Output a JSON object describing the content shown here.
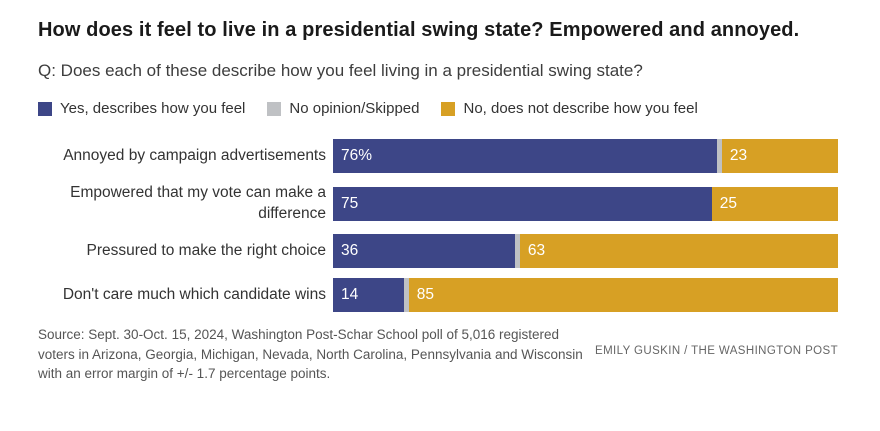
{
  "title": "How does it feel to live in a presidential swing state? Empowered and annoyed.",
  "subtitle": "Q: Does each of these describe how you feel living in a presidential swing state?",
  "chart_data": {
    "type": "bar",
    "orientation": "horizontal",
    "stacked": true,
    "unit": "percent",
    "xlim": [
      0,
      100
    ],
    "grid": false,
    "legend_position": "top",
    "categories": [
      "Annoyed by campaign advertisements",
      "Empowered that my vote can make a difference",
      "Pressured to make the right choice",
      "Don't care much which candidate wins"
    ],
    "series": [
      {
        "name": "Yes, describes how you feel",
        "color": "#3d4687",
        "values": [
          76,
          75,
          36,
          14
        ]
      },
      {
        "name": "No opinion/Skipped",
        "color": "#bfc1c4",
        "values": [
          1,
          0,
          1,
          1
        ]
      },
      {
        "name": "No, does not describe how you feel",
        "color": "#d7a024",
        "values": [
          23,
          25,
          63,
          85
        ]
      }
    ],
    "value_labels": [
      [
        "76%",
        "",
        "23"
      ],
      [
        "75",
        "",
        "25"
      ],
      [
        "36",
        "",
        "63"
      ],
      [
        "14",
        "",
        "85"
      ]
    ],
    "value_label_color": "#ffffff"
  },
  "footer": {
    "source": "Source: Sept. 30-Oct. 15, 2024, Washington Post-Schar School poll of 5,016 registered voters in Arizona, Georgia, Michigan, Nevada, North Carolina, Pennsylvania and Wisconsin with an error margin of +/- 1.7 percentage points.",
    "credit": "EMILY GUSKIN / THE WASHINGTON POST"
  }
}
